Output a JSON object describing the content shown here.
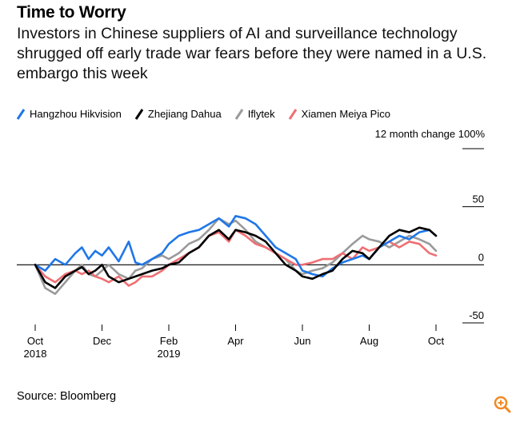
{
  "title": "Time to Worry",
  "subtitle": "Investors in Chinese suppliers of AI and surveillance technology shrugged off early trade war fears before they were named in a U.S. embargo this week",
  "source": "Source: Bloomberg",
  "zoom_icon": "zoom-in-icon",
  "chart_data": {
    "type": "line",
    "unit_label": "12 month change 100%",
    "ylim": [
      -50,
      100
    ],
    "yticks": [
      {
        "value": 50,
        "label": "50"
      },
      {
        "value": 0,
        "label": "0"
      },
      {
        "value": -50,
        "label": "-50"
      }
    ],
    "x_range": [
      0,
      12
    ],
    "xticks": [
      {
        "value": 0,
        "label": "Oct",
        "sublabel": "2018"
      },
      {
        "value": 2,
        "label": "Dec",
        "sublabel": ""
      },
      {
        "value": 4,
        "label": "Feb",
        "sublabel": "2019"
      },
      {
        "value": 6,
        "label": "Apr",
        "sublabel": ""
      },
      {
        "value": 8,
        "label": "Jun",
        "sublabel": ""
      },
      {
        "value": 10,
        "label": "Aug",
        "sublabel": ""
      },
      {
        "value": 12,
        "label": "Oct",
        "sublabel": ""
      }
    ],
    "series": [
      {
        "name": "Hangzhou Hikvision",
        "color": "#1f77e8",
        "x": [
          0,
          0.3,
          0.6,
          0.9,
          1.2,
          1.4,
          1.6,
          1.8,
          2.0,
          2.2,
          2.5,
          2.8,
          3.0,
          3.2,
          3.5,
          3.8,
          4.0,
          4.3,
          4.6,
          4.9,
          5.2,
          5.5,
          5.8,
          6.0,
          6.3,
          6.6,
          6.9,
          7.2,
          7.5,
          7.8,
          8.0,
          8.3,
          8.6,
          8.9,
          9.2,
          9.5,
          9.8,
          10.0,
          10.3,
          10.6,
          10.9,
          11.2,
          11.5,
          11.8,
          12.0
        ],
        "values": [
          0,
          -5,
          5,
          0,
          10,
          15,
          5,
          12,
          8,
          15,
          3,
          20,
          2,
          0,
          5,
          10,
          18,
          25,
          28,
          30,
          35,
          40,
          33,
          42,
          40,
          35,
          25,
          15,
          10,
          5,
          -5,
          -8,
          -10,
          -3,
          2,
          5,
          8,
          5,
          15,
          20,
          25,
          22,
          28,
          30,
          25
        ]
      },
      {
        "name": "Zhejiang Dahua",
        "color": "#000000",
        "x": [
          0,
          0.3,
          0.6,
          0.9,
          1.2,
          1.4,
          1.6,
          1.8,
          2.0,
          2.2,
          2.5,
          2.8,
          3.0,
          3.2,
          3.5,
          3.8,
          4.0,
          4.3,
          4.6,
          4.9,
          5.2,
          5.5,
          5.8,
          6.0,
          6.3,
          6.6,
          6.9,
          7.2,
          7.5,
          7.8,
          8.0,
          8.3,
          8.6,
          8.9,
          9.2,
          9.5,
          9.8,
          10.0,
          10.3,
          10.6,
          10.9,
          11.2,
          11.5,
          11.8,
          12.0
        ],
        "values": [
          0,
          -15,
          -20,
          -10,
          -5,
          -2,
          -8,
          -5,
          0,
          -10,
          -15,
          -12,
          -10,
          -8,
          -5,
          -3,
          0,
          2,
          10,
          15,
          25,
          30,
          22,
          30,
          28,
          25,
          20,
          10,
          0,
          -5,
          -10,
          -12,
          -8,
          -5,
          5,
          12,
          10,
          5,
          15,
          25,
          30,
          28,
          32,
          30,
          25
        ]
      },
      {
        "name": "Iflytek",
        "color": "#9a9a9a",
        "x": [
          0,
          0.3,
          0.6,
          0.9,
          1.2,
          1.4,
          1.6,
          1.8,
          2.0,
          2.2,
          2.5,
          2.8,
          3.0,
          3.2,
          3.5,
          3.8,
          4.0,
          4.3,
          4.6,
          4.9,
          5.2,
          5.5,
          5.8,
          6.0,
          6.3,
          6.6,
          6.9,
          7.2,
          7.5,
          7.8,
          8.0,
          8.3,
          8.6,
          8.9,
          9.2,
          9.5,
          9.8,
          10.0,
          10.3,
          10.6,
          10.9,
          11.2,
          11.5,
          11.8,
          12.0
        ],
        "values": [
          0,
          -20,
          -25,
          -15,
          -5,
          0,
          -8,
          -10,
          -5,
          0,
          -8,
          -12,
          -5,
          -3,
          5,
          8,
          5,
          10,
          18,
          22,
          30,
          40,
          35,
          38,
          30,
          20,
          15,
          10,
          5,
          -5,
          -8,
          -5,
          -3,
          2,
          10,
          18,
          25,
          22,
          20,
          15,
          20,
          25,
          22,
          18,
          12
        ]
      },
      {
        "name": "Xiamen Meiya Pico",
        "color": "#ef6f73",
        "x": [
          0,
          0.3,
          0.6,
          0.9,
          1.2,
          1.4,
          1.6,
          1.8,
          2.0,
          2.2,
          2.5,
          2.8,
          3.0,
          3.2,
          3.5,
          3.8,
          4.0,
          4.3,
          4.6,
          4.9,
          5.2,
          5.5,
          5.8,
          6.0,
          6.3,
          6.6,
          6.9,
          7.2,
          7.5,
          7.8,
          8.0,
          8.3,
          8.6,
          8.9,
          9.2,
          9.5,
          9.8,
          10.0,
          10.3,
          10.6,
          10.9,
          11.2,
          11.5,
          11.8,
          12.0
        ],
        "values": [
          0,
          -10,
          -15,
          -8,
          -5,
          -8,
          -5,
          -10,
          -12,
          -15,
          -10,
          -18,
          -15,
          -10,
          -10,
          -5,
          0,
          5,
          10,
          15,
          25,
          28,
          20,
          30,
          25,
          18,
          15,
          10,
          5,
          0,
          0,
          2,
          5,
          5,
          10,
          5,
          15,
          12,
          15,
          20,
          15,
          20,
          18,
          10,
          8
        ]
      }
    ]
  }
}
